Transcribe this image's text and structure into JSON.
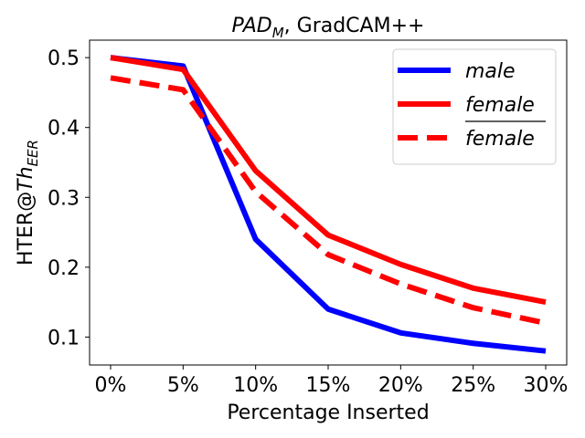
{
  "chart_data": {
    "type": "line",
    "title_main": "PAD",
    "title_sub": "M",
    "title_rest": ", GradCAM++",
    "xlabel": "Percentage Inserted",
    "ylabel_main": "HTER@",
    "ylabel_italic": "Th",
    "ylabel_sub": "EER",
    "categories": [
      "0%",
      "5%",
      "10%",
      "15%",
      "20%",
      "25%",
      "30%"
    ],
    "yticks": [
      0.1,
      0.2,
      0.3,
      0.4,
      0.5
    ],
    "ytick_labels": [
      "0.1",
      "0.2",
      "0.3",
      "0.4",
      "0.5"
    ],
    "ylim": [
      0.06,
      0.525
    ],
    "series": [
      {
        "name": "male",
        "color": "#0000ff",
        "dash": "solid",
        "values": [
          0.5,
          0.488,
          0.24,
          0.14,
          0.106,
          0.091,
          0.08
        ]
      },
      {
        "name": "female",
        "color": "#ff0000",
        "dash": "solid",
        "values": [
          0.5,
          0.483,
          0.338,
          0.246,
          0.204,
          0.17,
          0.15
        ]
      },
      {
        "name": "female",
        "color": "#ff0000",
        "dash": "dashed",
        "overline": true,
        "values": [
          0.471,
          0.454,
          0.308,
          0.218,
          0.176,
          0.142,
          0.12
        ]
      }
    ],
    "legend_position": "top-right"
  }
}
